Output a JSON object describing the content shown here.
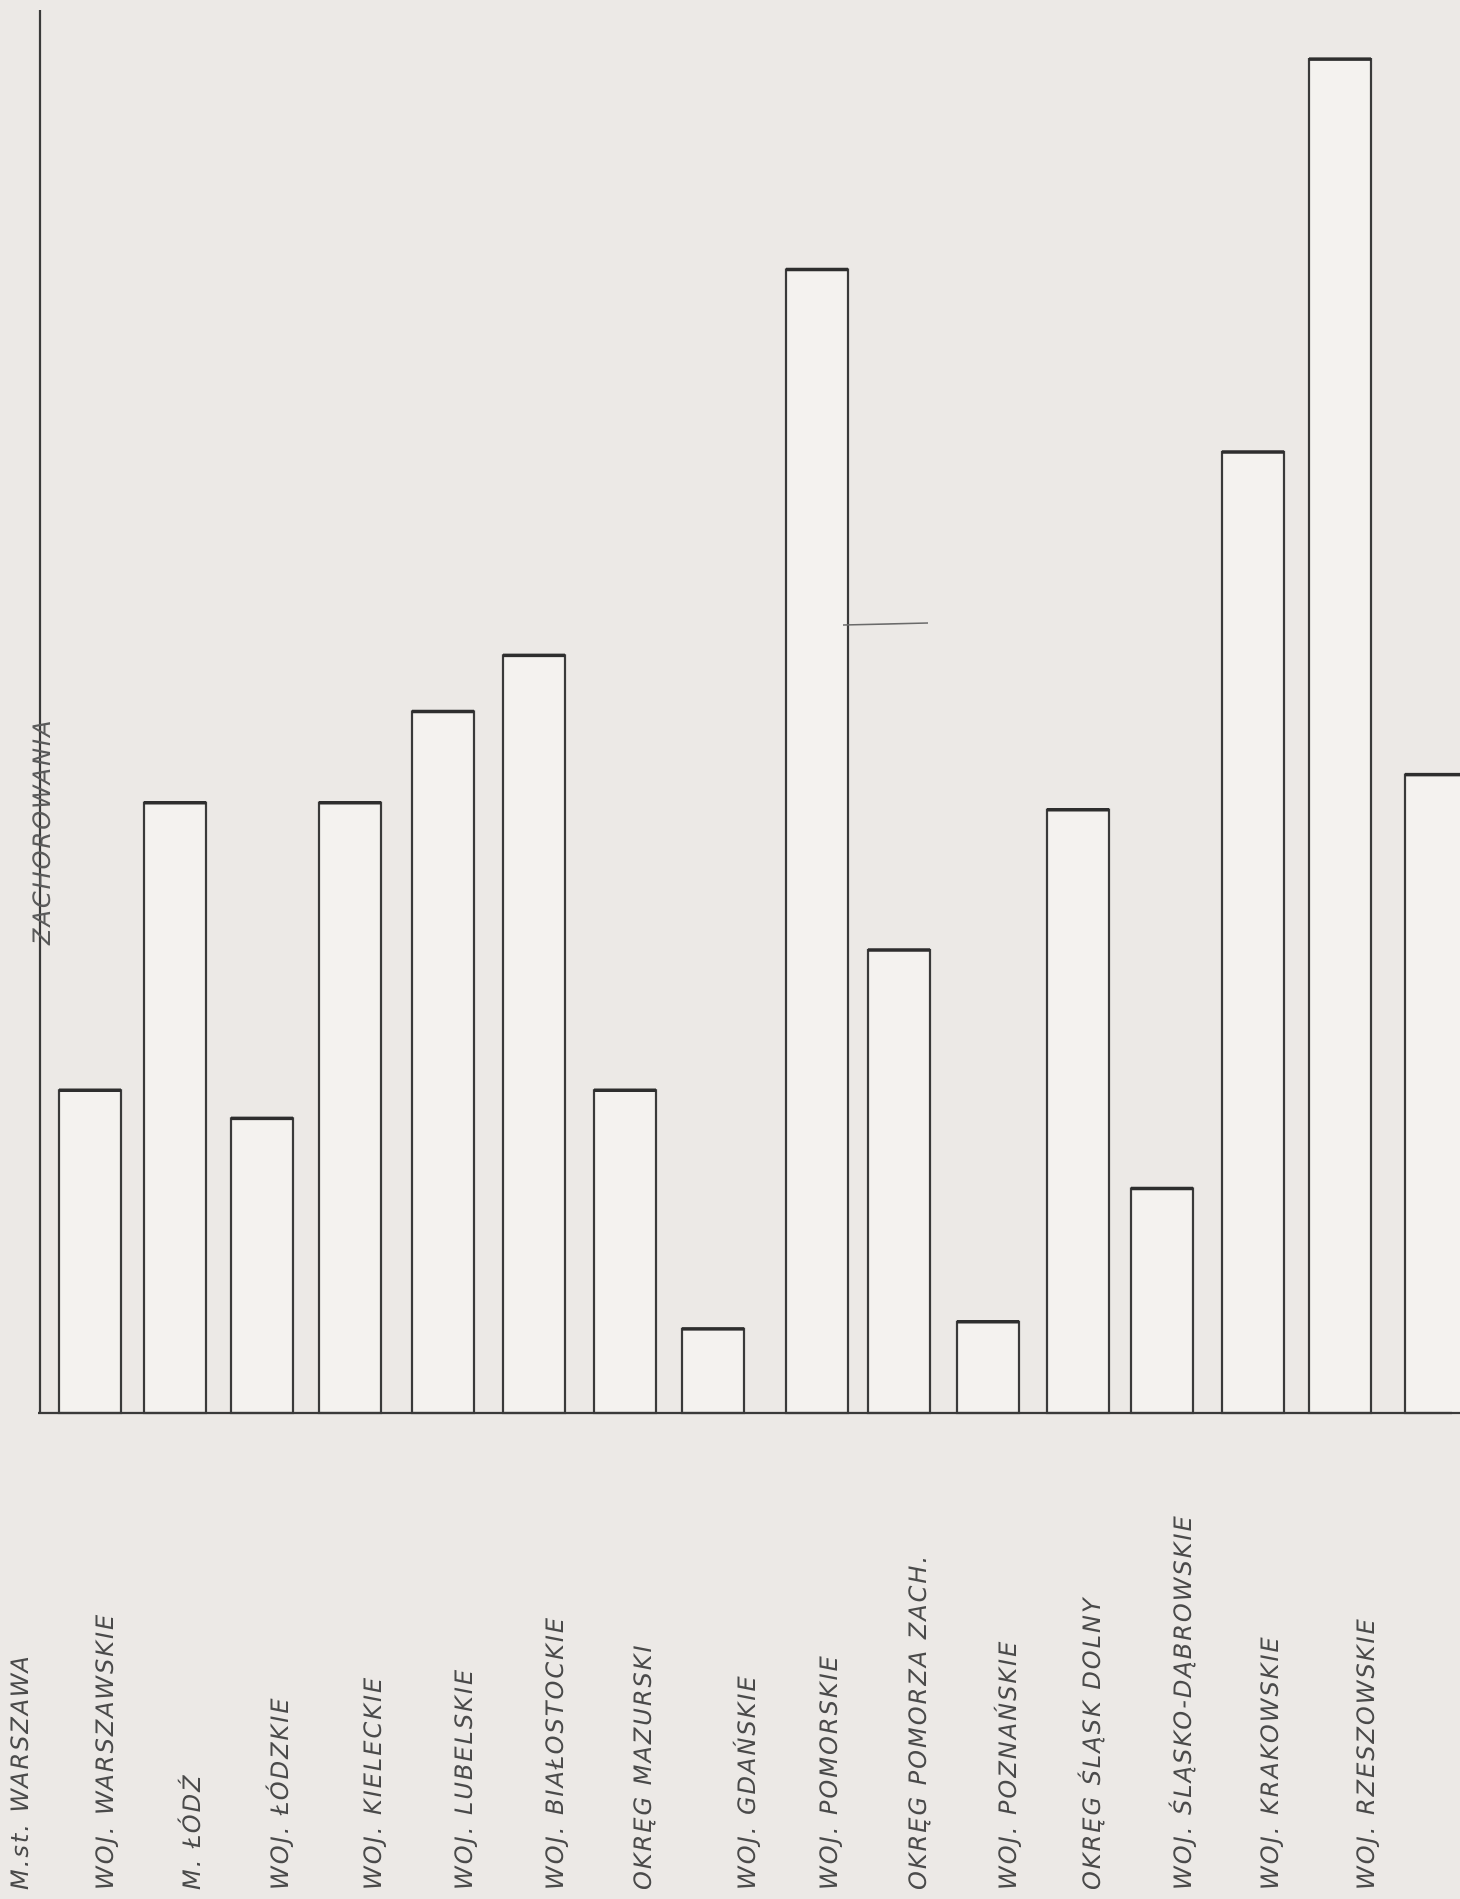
{
  "chart_data": {
    "type": "bar",
    "ylabel": "ZACHOROWANIA",
    "categories": [
      "M.st. WARSZAWA",
      "WOJ. WARSZAWSKIE",
      "M. ŁÓDŹ",
      "WOJ. ŁÓDZKIE",
      "WOJ. KIELECKIE",
      "WOJ. LUBELSKIE",
      "WOJ. BIAŁOSTOCKIE",
      "OKRĘG MAZURSKI",
      "WOJ. GDAŃSKIE",
      "WOJ. POMORSKIE",
      "OKRĘG POMORZA ZACH.",
      "WOJ. POZNAŃSKIE",
      "OKRĘG ŚLĄSK DOLNY",
      "WOJ. ŚLĄSKO-DĄBROWSKIE",
      "WOJ. KRAKOWSKIE",
      "WOJ. RZESZOWSKIE"
    ],
    "values": [
      23,
      43.5,
      21,
      43.5,
      50,
      54,
      23,
      6,
      81.5,
      33,
      6.5,
      43,
      16,
      68.5,
      96.5,
      45.5
    ],
    "ylim": [
      0,
      100
    ],
    "grid": false
  }
}
